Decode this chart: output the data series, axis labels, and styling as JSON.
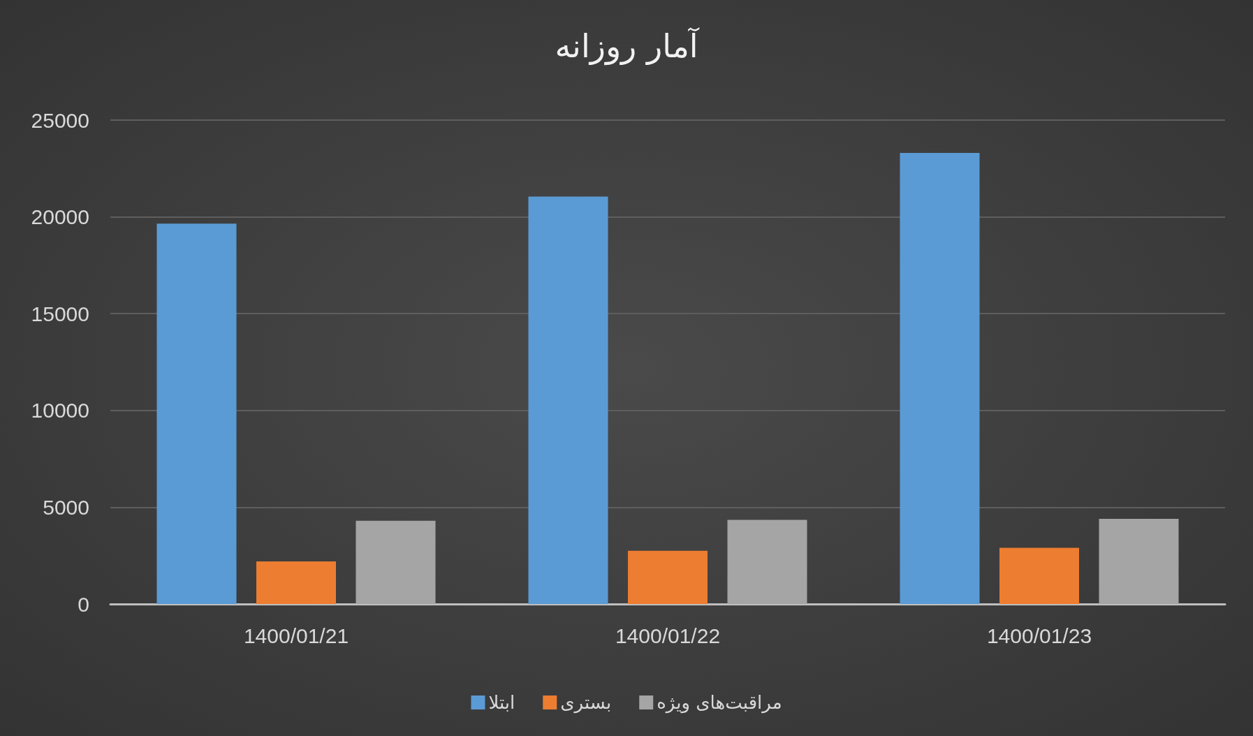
{
  "chart_data": {
    "type": "bar",
    "title": "آمار روزانه",
    "categories": [
      "1400/01/21",
      "1400/01/22",
      "1400/01/23"
    ],
    "series": [
      {
        "name": "ابتلا",
        "color": "#5b9bd5",
        "values": [
          19650,
          21050,
          23300
        ]
      },
      {
        "name": "بستری",
        "color": "#ed7d31",
        "values": [
          2200,
          2750,
          2900
        ]
      },
      {
        "name": "مراقبت‌های ویژه",
        "color": "#a5a5a5",
        "values": [
          4300,
          4350,
          4400
        ]
      }
    ],
    "ylim": [
      0,
      25000
    ],
    "yticks": [
      0,
      5000,
      10000,
      15000,
      20000,
      25000
    ],
    "grid": "y",
    "legend": "bottom"
  }
}
